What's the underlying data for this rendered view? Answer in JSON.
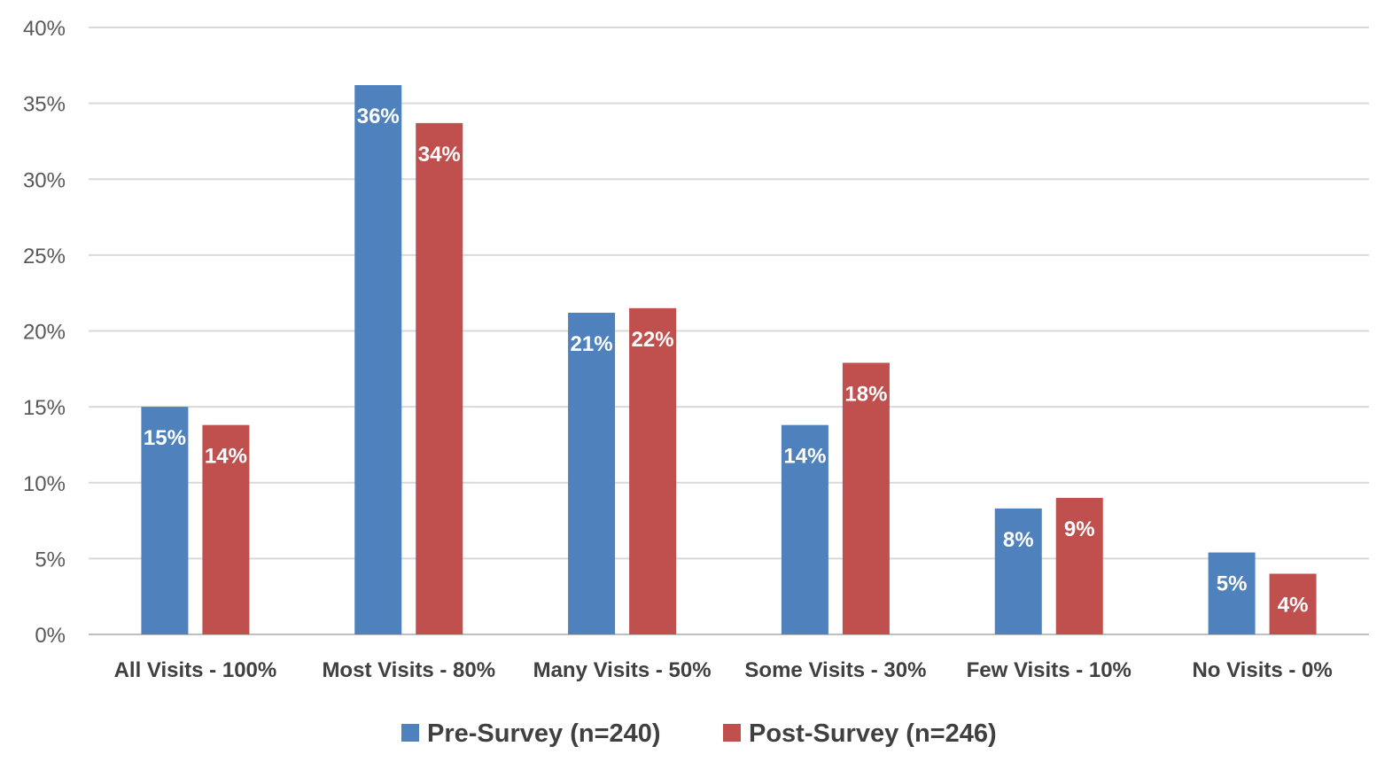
{
  "chart_data": {
    "type": "bar",
    "title": "",
    "xlabel": "",
    "ylabel": "",
    "ylim": [
      0,
      40
    ],
    "ytick_step": 5,
    "ytick_format": "percent",
    "grid": true,
    "legend_position": "bottom",
    "categories": [
      "All Visits - 100%",
      "Most Visits - 80%",
      "Many Visits - 50%",
      "Some Visits - 30%",
      "Few Visits - 10%",
      "No Visits - 0%"
    ],
    "series": [
      {
        "name": "Pre-Survey (n=240)",
        "color": "#4f81bd",
        "values": [
          15,
          36.2,
          21.2,
          13.8,
          8.3,
          5.4
        ],
        "labels": [
          "15%",
          "36%",
          "21%",
          "14%",
          "8%",
          "5%"
        ]
      },
      {
        "name": "Post-Survey (n=246)",
        "color": "#c0504d",
        "values": [
          13.8,
          33.7,
          21.5,
          17.9,
          9,
          4
        ],
        "labels": [
          "14%",
          "34%",
          "22%",
          "18%",
          "9%",
          "4%"
        ]
      }
    ]
  }
}
